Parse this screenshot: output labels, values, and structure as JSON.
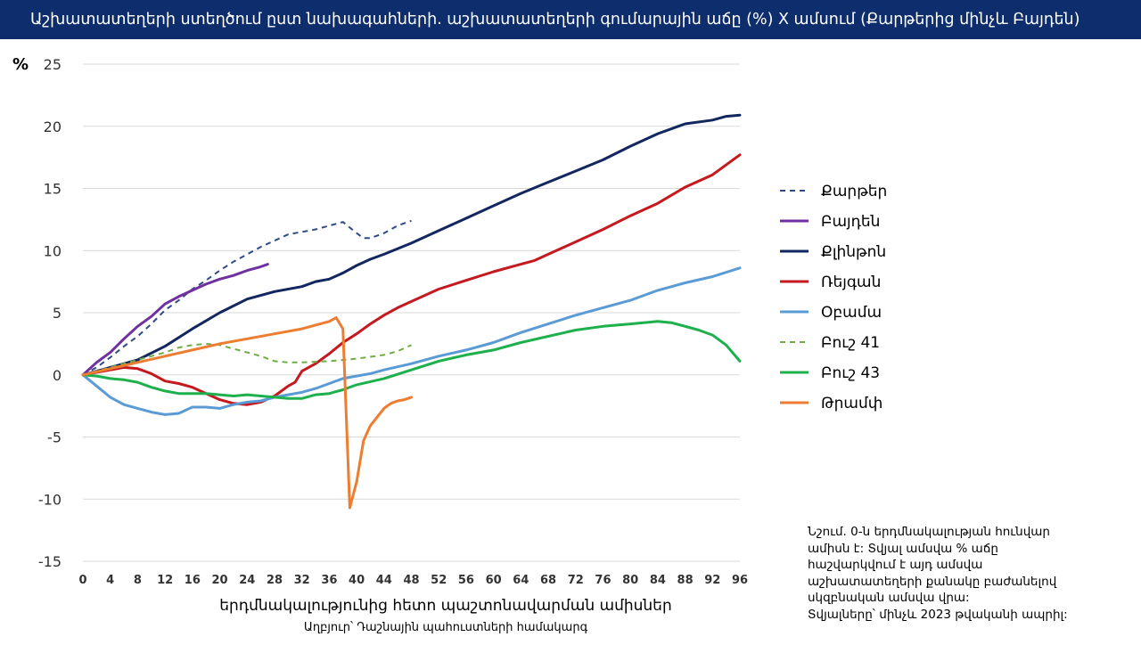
{
  "title": "Աշխատատեղերի ստեղծում ըստ նախագահների. աշխատատեղերի գումարային աճը (%) X ամսում (Քարթերից մինչև Բայդեն)",
  "note_lines": [
    "Նշում. 0-ն երդմնակալության հունվար",
    "ամիսն է: Տվյալ ամսվա % աճը",
    "հաշվարկվում է այդ ամսվա",
    "աշխատատեղերի քանակը բաժանելով",
    "սկզբնական ամսվա վրա:",
    "Տվյալները՝ մինչև 2023 թվականի ապրիլ:"
  ],
  "chart_data": {
    "type": "line",
    "title": "Աշխատատեղերի ստեղծում ըստ նախագահների. աշխատատեղերի գումարային աճը (%) X ամսում (Քարթերից մինչև Բայդեն)",
    "xlabel": "երդմնակալությունից հետո պաշտոնավարման ամիսներ",
    "ylabel": "%",
    "source": "Աղբյուր՝ Դաշնային պահուստների համակարգ",
    "xlim": [
      0,
      96
    ],
    "ylim": [
      -15,
      25
    ],
    "x_ticks": [
      0,
      4,
      8,
      12,
      16,
      20,
      24,
      28,
      32,
      36,
      40,
      44,
      48,
      52,
      56,
      60,
      64,
      68,
      72,
      76,
      80,
      84,
      88,
      92,
      96
    ],
    "y_ticks": [
      25,
      20,
      15,
      10,
      5,
      0,
      -5,
      -10,
      -15
    ],
    "grid": true,
    "legend_position": "right",
    "series": [
      {
        "name": "Քարթեր",
        "color": "#2f4a87",
        "dash": "dashed",
        "points": [
          [
            0,
            0
          ],
          [
            2,
            0.6
          ],
          [
            4,
            1.4
          ],
          [
            6,
            2.3
          ],
          [
            8,
            3.1
          ],
          [
            10,
            4.1
          ],
          [
            12,
            5.2
          ],
          [
            14,
            6.0
          ],
          [
            16,
            6.9
          ],
          [
            18,
            7.6
          ],
          [
            20,
            8.4
          ],
          [
            22,
            9.1
          ],
          [
            24,
            9.7
          ],
          [
            26,
            10.3
          ],
          [
            28,
            10.8
          ],
          [
            30,
            11.3
          ],
          [
            32,
            11.5
          ],
          [
            34,
            11.7
          ],
          [
            36,
            12.0
          ],
          [
            38,
            12.3
          ],
          [
            40,
            11.4
          ],
          [
            41,
            11.0
          ],
          [
            42,
            11.0
          ],
          [
            44,
            11.4
          ],
          [
            46,
            12.0
          ],
          [
            48,
            12.4
          ]
        ]
      },
      {
        "name": "Բայդեն",
        "color": "#7030a0",
        "dash": "solid",
        "points": [
          [
            0,
            0
          ],
          [
            2,
            1.0
          ],
          [
            4,
            1.8
          ],
          [
            6,
            2.9
          ],
          [
            8,
            3.9
          ],
          [
            10,
            4.7
          ],
          [
            12,
            5.7
          ],
          [
            14,
            6.3
          ],
          [
            16,
            6.8
          ],
          [
            18,
            7.3
          ],
          [
            20,
            7.7
          ],
          [
            22,
            8.0
          ],
          [
            24,
            8.4
          ],
          [
            26,
            8.7
          ],
          [
            27,
            8.9
          ]
        ]
      },
      {
        "name": "Քլինթոն",
        "color": "#12275f",
        "dash": "solid",
        "points": [
          [
            0,
            0
          ],
          [
            4,
            0.6
          ],
          [
            8,
            1.2
          ],
          [
            12,
            2.3
          ],
          [
            16,
            3.7
          ],
          [
            20,
            5.0
          ],
          [
            24,
            6.1
          ],
          [
            28,
            6.7
          ],
          [
            32,
            7.1
          ],
          [
            34,
            7.5
          ],
          [
            36,
            7.7
          ],
          [
            38,
            8.2
          ],
          [
            40,
            8.8
          ],
          [
            42,
            9.3
          ],
          [
            44,
            9.7
          ],
          [
            48,
            10.6
          ],
          [
            52,
            11.6
          ],
          [
            56,
            12.6
          ],
          [
            60,
            13.6
          ],
          [
            64,
            14.6
          ],
          [
            68,
            15.5
          ],
          [
            72,
            16.4
          ],
          [
            76,
            17.3
          ],
          [
            80,
            18.4
          ],
          [
            84,
            19.4
          ],
          [
            88,
            20.2
          ],
          [
            92,
            20.5
          ],
          [
            94,
            20.8
          ],
          [
            96,
            20.9
          ]
        ]
      },
      {
        "name": "Ռեյգան",
        "color": "#c5181f",
        "dash": "solid",
        "points": [
          [
            0,
            0
          ],
          [
            4,
            0.4
          ],
          [
            6,
            0.6
          ],
          [
            8,
            0.5
          ],
          [
            10,
            0.1
          ],
          [
            12,
            -0.5
          ],
          [
            14,
            -0.7
          ],
          [
            16,
            -1.0
          ],
          [
            18,
            -1.5
          ],
          [
            20,
            -2.0
          ],
          [
            22,
            -2.3
          ],
          [
            24,
            -2.4
          ],
          [
            26,
            -2.2
          ],
          [
            28,
            -1.7
          ],
          [
            30,
            -0.9
          ],
          [
            31,
            -0.6
          ],
          [
            32,
            0.3
          ],
          [
            34,
            0.9
          ],
          [
            36,
            1.7
          ],
          [
            38,
            2.6
          ],
          [
            40,
            3.3
          ],
          [
            42,
            4.1
          ],
          [
            44,
            4.8
          ],
          [
            46,
            5.4
          ],
          [
            48,
            5.9
          ],
          [
            52,
            6.9
          ],
          [
            56,
            7.6
          ],
          [
            60,
            8.3
          ],
          [
            64,
            8.9
          ],
          [
            66,
            9.2
          ],
          [
            68,
            9.7
          ],
          [
            72,
            10.7
          ],
          [
            76,
            11.7
          ],
          [
            80,
            12.8
          ],
          [
            84,
            13.8
          ],
          [
            88,
            15.1
          ],
          [
            92,
            16.1
          ],
          [
            96,
            17.7
          ]
        ]
      },
      {
        "name": "Օբամա",
        "color": "#5b9bd5",
        "dash": "solid",
        "points": [
          [
            0,
            0
          ],
          [
            2,
            -0.9
          ],
          [
            4,
            -1.8
          ],
          [
            6,
            -2.4
          ],
          [
            8,
            -2.7
          ],
          [
            10,
            -3.0
          ],
          [
            12,
            -3.2
          ],
          [
            14,
            -3.1
          ],
          [
            16,
            -2.6
          ],
          [
            18,
            -2.6
          ],
          [
            20,
            -2.7
          ],
          [
            22,
            -2.4
          ],
          [
            24,
            -2.2
          ],
          [
            26,
            -2.1
          ],
          [
            28,
            -1.8
          ],
          [
            30,
            -1.6
          ],
          [
            32,
            -1.4
          ],
          [
            34,
            -1.1
          ],
          [
            36,
            -0.7
          ],
          [
            38,
            -0.3
          ],
          [
            40,
            -0.1
          ],
          [
            42,
            0.1
          ],
          [
            44,
            0.4
          ],
          [
            48,
            0.9
          ],
          [
            52,
            1.5
          ],
          [
            56,
            2.0
          ],
          [
            60,
            2.6
          ],
          [
            64,
            3.4
          ],
          [
            68,
            4.1
          ],
          [
            72,
            4.8
          ],
          [
            76,
            5.4
          ],
          [
            80,
            6.0
          ],
          [
            84,
            6.8
          ],
          [
            88,
            7.4
          ],
          [
            92,
            7.9
          ],
          [
            96,
            8.6
          ]
        ]
      },
      {
        "name": "Բուշ 41",
        "color": "#70ad47",
        "dash": "dashed",
        "points": [
          [
            0,
            0
          ],
          [
            4,
            0.6
          ],
          [
            8,
            1.2
          ],
          [
            12,
            1.8
          ],
          [
            14,
            2.2
          ],
          [
            16,
            2.4
          ],
          [
            18,
            2.5
          ],
          [
            20,
            2.4
          ],
          [
            22,
            2.1
          ],
          [
            24,
            1.8
          ],
          [
            26,
            1.5
          ],
          [
            28,
            1.1
          ],
          [
            30,
            1.0
          ],
          [
            32,
            1.0
          ],
          [
            36,
            1.1
          ],
          [
            40,
            1.3
          ],
          [
            44,
            1.6
          ],
          [
            46,
            1.9
          ],
          [
            48,
            2.4
          ]
        ]
      },
      {
        "name": "Բուշ 43",
        "color": "#1db04c",
        "dash": "solid",
        "points": [
          [
            0,
            0
          ],
          [
            2,
            -0.1
          ],
          [
            4,
            -0.3
          ],
          [
            6,
            -0.4
          ],
          [
            8,
            -0.6
          ],
          [
            10,
            -1.0
          ],
          [
            12,
            -1.3
          ],
          [
            14,
            -1.5
          ],
          [
            16,
            -1.5
          ],
          [
            18,
            -1.5
          ],
          [
            20,
            -1.6
          ],
          [
            22,
            -1.7
          ],
          [
            24,
            -1.6
          ],
          [
            26,
            -1.7
          ],
          [
            28,
            -1.8
          ],
          [
            30,
            -1.9
          ],
          [
            32,
            -1.9
          ],
          [
            34,
            -1.6
          ],
          [
            36,
            -1.5
          ],
          [
            38,
            -1.2
          ],
          [
            40,
            -0.8
          ],
          [
            44,
            -0.3
          ],
          [
            48,
            0.4
          ],
          [
            52,
            1.1
          ],
          [
            56,
            1.6
          ],
          [
            60,
            2.0
          ],
          [
            64,
            2.6
          ],
          [
            68,
            3.1
          ],
          [
            72,
            3.6
          ],
          [
            76,
            3.9
          ],
          [
            80,
            4.1
          ],
          [
            84,
            4.3
          ],
          [
            86,
            4.2
          ],
          [
            88,
            3.9
          ],
          [
            90,
            3.6
          ],
          [
            92,
            3.2
          ],
          [
            94,
            2.4
          ],
          [
            96,
            1.1
          ]
        ]
      },
      {
        "name": "Թրամփ",
        "color": "#ed7d31",
        "dash": "solid",
        "points": [
          [
            0,
            0
          ],
          [
            4,
            0.5
          ],
          [
            8,
            1.0
          ],
          [
            12,
            1.5
          ],
          [
            16,
            2.0
          ],
          [
            20,
            2.5
          ],
          [
            24,
            2.9
          ],
          [
            28,
            3.3
          ],
          [
            32,
            3.7
          ],
          [
            34,
            4.0
          ],
          [
            36,
            4.3
          ],
          [
            37,
            4.6
          ],
          [
            38,
            3.7
          ],
          [
            39,
            -10.7
          ],
          [
            40,
            -8.6
          ],
          [
            41,
            -5.3
          ],
          [
            42,
            -4.1
          ],
          [
            43,
            -3.4
          ],
          [
            44,
            -2.7
          ],
          [
            45,
            -2.3
          ],
          [
            46,
            -2.1
          ],
          [
            47,
            -2.0
          ],
          [
            48,
            -1.8
          ]
        ]
      }
    ]
  }
}
